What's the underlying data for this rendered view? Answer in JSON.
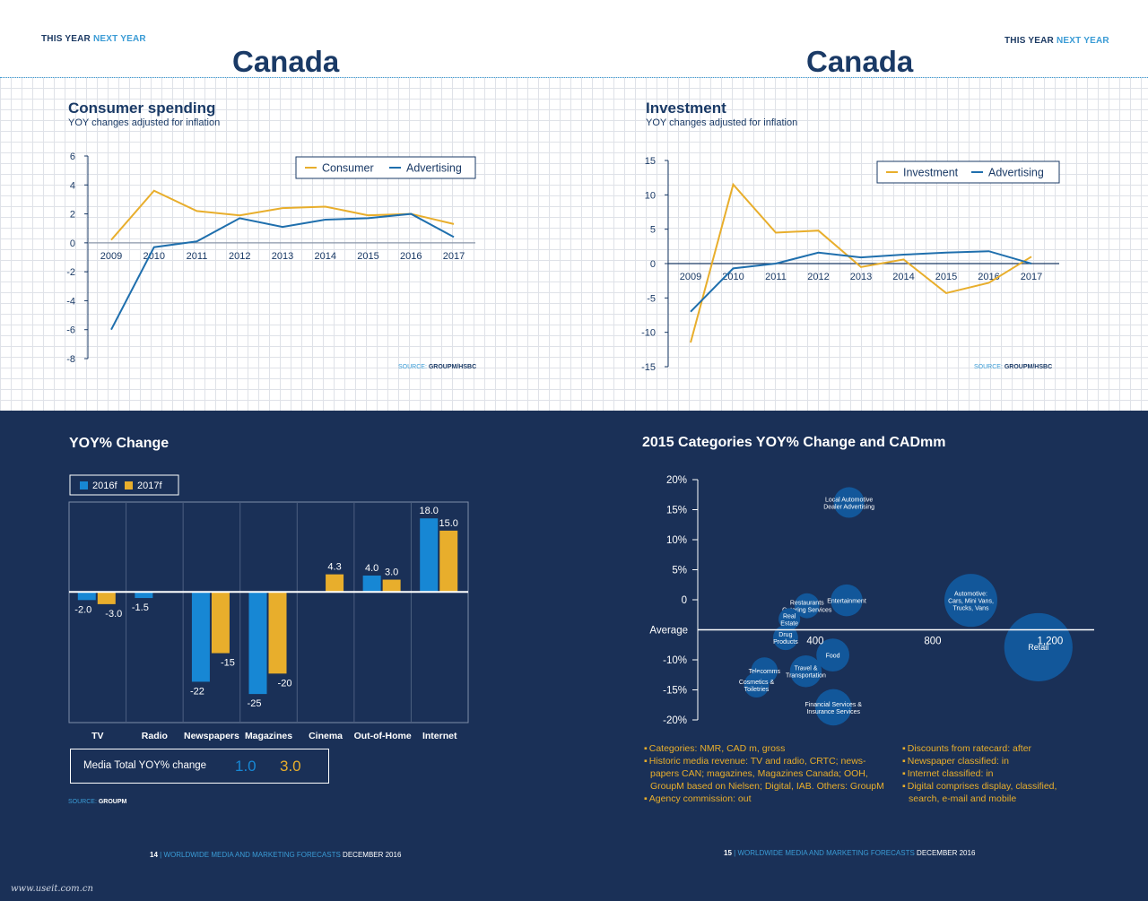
{
  "left_page": {
    "year_label_1": "THIS YEAR",
    "year_label_2": "NEXT YEAR",
    "country": "Canada",
    "footer_page": "14",
    "footer_sep": "|",
    "footer_pub": "WORLDWIDE MEDIA AND MARKETING FORECASTS",
    "footer_date": "DECEMBER 2016"
  },
  "right_page": {
    "year_label_1": "THIS YEAR",
    "year_label_2": "NEXT YEAR",
    "country": "Canada",
    "footer_page": "15",
    "footer_sep": "|",
    "footer_pub": "WORLDWIDE MEDIA AND MARKETING FORECASTS",
    "footer_date": "DECEMBER 2016"
  },
  "colors": {
    "navy": "#1a3057",
    "yellow": "#e8ae2c",
    "blue": "#1f6fad",
    "light_blue": "#1787d4",
    "bubble": "#12579a"
  },
  "media_total": {
    "label": "Media Total YOY% change",
    "value_2016": "1.0",
    "value_2017": "3.0"
  },
  "bar_source": {
    "source_label": "SOURCE:",
    "source_name": "GROUPM"
  },
  "notes_left": [
    "Categories: NMR, CAD m, gross",
    "Historic media revenue: TV and radio, CRTC; news-papers CAN; magazines, Magazines Canada; OOH, GroupM based on Nielsen; Digital, IAB. Others: GroupM",
    "Agency commission: out"
  ],
  "notes_right": [
    "Discounts from ratecard: after",
    "Newspaper classified: in",
    "Internet classified: in",
    "Digital comprises display, classified, search, e-mail and mobile"
  ],
  "watermark": "www.useit.com.cn",
  "chart_data": [
    {
      "type": "line",
      "title": "Consumer spending",
      "subtitle": "YOY changes adjusted for inflation",
      "x": [
        "2009",
        "2010",
        "2011",
        "2012",
        "2013",
        "2014",
        "2015",
        "2016",
        "2017"
      ],
      "series": [
        {
          "name": "Consumer",
          "color": "#e8ae2c",
          "values": [
            0.2,
            3.6,
            2.2,
            1.9,
            2.4,
            2.5,
            1.9,
            2.0,
            1.3
          ]
        },
        {
          "name": "Advertising",
          "color": "#1f6fad",
          "values": [
            -6.0,
            -0.3,
            0.1,
            1.7,
            1.1,
            1.6,
            1.7,
            2.0,
            0.4
          ]
        }
      ],
      "ylim": [
        -8,
        6
      ],
      "yticks": [
        6,
        4,
        2,
        0,
        -2,
        -4,
        -6,
        -8
      ],
      "grid": true,
      "legend": "top-right",
      "source_label": "SOURCE:",
      "source_name": "GROUPM/HSBC"
    },
    {
      "type": "line",
      "title": "Investment",
      "subtitle": "YOY changes adjusted for inflation",
      "x": [
        "2009",
        "2010",
        "2011",
        "2012",
        "2013",
        "2014",
        "2015",
        "2016",
        "2017"
      ],
      "series": [
        {
          "name": "Investment",
          "color": "#e8ae2c",
          "values": [
            -11.5,
            11.5,
            4.5,
            4.8,
            -0.5,
            0.6,
            -4.3,
            -2.8,
            1.0
          ]
        },
        {
          "name": "Advertising",
          "color": "#1f6fad",
          "values": [
            -7.0,
            -0.7,
            0.0,
            1.6,
            0.9,
            1.3,
            1.6,
            1.8,
            0.0
          ]
        }
      ],
      "ylim": [
        -15,
        15
      ],
      "yticks": [
        15,
        10,
        5,
        0,
        -5,
        -10,
        -15
      ],
      "grid": true,
      "legend": "top-right",
      "source_label": "SOURCE:",
      "source_name": "GROUPM/HSBC"
    },
    {
      "type": "bar",
      "title": "YOY% Change",
      "categories": [
        "TV",
        "Radio",
        "Newspapers",
        "Magazines",
        "Cinema",
        "Out-of-Home",
        "Internet"
      ],
      "series": [
        {
          "name": "2016f",
          "color": "#1787d4",
          "values": [
            -2.0,
            -1.5,
            -22,
            -25,
            null,
            4.0,
            18.0
          ],
          "labels": [
            "-2.0",
            "-1.5",
            "-22",
            "-25",
            "",
            "4.0",
            "18.0"
          ]
        },
        {
          "name": "2017f",
          "color": "#e8ae2c",
          "values": [
            -3.0,
            null,
            -15,
            -20,
            4.3,
            3.0,
            15.0
          ],
          "labels": [
            "-3.0",
            "",
            "-15",
            "-20",
            "4.3",
            "3.0",
            "15.0"
          ]
        }
      ],
      "ylim": [
        -32,
        22
      ],
      "legend": "top-left"
    },
    {
      "type": "scatter",
      "title": "2015 Categories YOY% Change and CADmm",
      "average_label": "Average",
      "average_y": -5,
      "xlim": [
        0,
        1350
      ],
      "ylim": [
        -20,
        20
      ],
      "xticks": [
        {
          "v": 400,
          "label": "400"
        },
        {
          "v": 800,
          "label": "800"
        },
        {
          "v": 1200,
          "label": "1,200"
        }
      ],
      "yticks": [
        {
          "v": 20,
          "label": "20%"
        },
        {
          "v": 15,
          "label": "15%"
        },
        {
          "v": 10,
          "label": "10%"
        },
        {
          "v": 5,
          "label": "5%"
        },
        {
          "v": 0,
          "label": "0"
        },
        {
          "v": -10,
          "label": "-10%"
        },
        {
          "v": -15,
          "label": "-15%"
        },
        {
          "v": -20,
          "label": "-20%"
        }
      ],
      "points": [
        {
          "name": "Local Automotive Dealer Advertising",
          "lines": [
            "Local Automotive",
            "Dealer Advertising"
          ],
          "x": 515,
          "y": 16.2,
          "size": 60
        },
        {
          "name": "Entertainment",
          "lines": [
            "Entertainment"
          ],
          "x": 507,
          "y": -0.1,
          "size": 65
        },
        {
          "name": "Restaurants Catering Services",
          "lines": [
            "Restaurants",
            "Catering Services"
          ],
          "x": 372,
          "y": -1.0,
          "size": 40
        },
        {
          "name": "Real Estate",
          "lines": [
            "Real",
            "Estate"
          ],
          "x": 312,
          "y": -3.2,
          "size": 30
        },
        {
          "name": "Drug Products",
          "lines": [
            "Drug",
            "Products"
          ],
          "x": 299,
          "y": -6.3,
          "size": 40
        },
        {
          "name": "Automotive: Cars, Mini Vans, Trucks, Vans",
          "lines": [
            "Automotive:",
            "Cars, Mini Vans,",
            "Trucks, Vans"
          ],
          "x": 930,
          "y": -0.1,
          "size": 180
        },
        {
          "name": "Retail",
          "lines": [
            "Retail"
          ],
          "x": 1160,
          "y": -7.9,
          "size": 300
        },
        {
          "name": "Food",
          "lines": [
            "Food"
          ],
          "x": 460,
          "y": -9.2,
          "size": 70
        },
        {
          "name": "Telecomms",
          "lines": [
            "Telecomms"
          ],
          "x": 227,
          "y": -11.8,
          "size": 45
        },
        {
          "name": "Travel & Transportation",
          "lines": [
            "Travel &",
            "Transportation"
          ],
          "x": 368,
          "y": -11.9,
          "size": 65
        },
        {
          "name": "Cosmetics & Toiletries",
          "lines": [
            "Cosmetics &",
            "Toiletries"
          ],
          "x": 200,
          "y": -14.2,
          "size": 40
        },
        {
          "name": "Financial Services & Insurance Services",
          "lines": [
            "Financial Services &",
            "Insurance Services"
          ],
          "x": 462,
          "y": -17.9,
          "size": 85
        }
      ]
    }
  ]
}
